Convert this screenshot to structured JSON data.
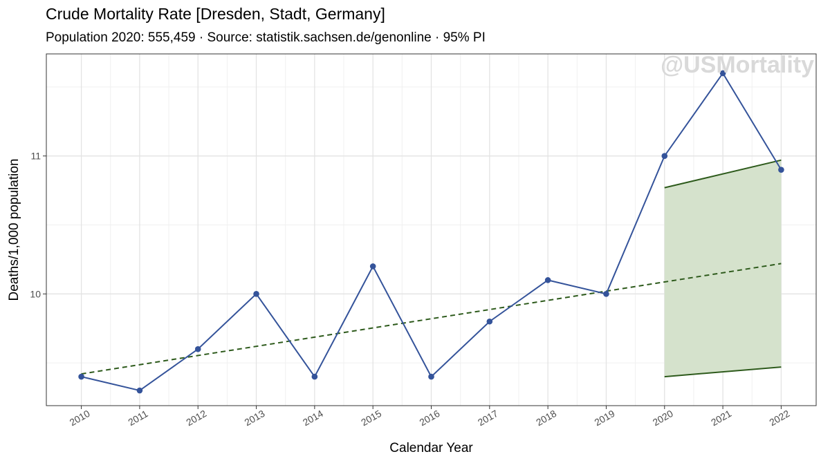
{
  "chart_data": {
    "type": "line",
    "title": "Crude Mortality Rate [Dresden, Stadt, Germany]",
    "subtitle": "Population 2020: 555,459 · Source: statistik.sachsen.de/genonline · 95% PI",
    "xlabel": "Calendar Year",
    "ylabel": "Deaths/1,000 population",
    "watermark": "@USMortality",
    "x": [
      2010,
      2011,
      2012,
      2013,
      2014,
      2015,
      2016,
      2017,
      2018,
      2019,
      2020,
      2021,
      2022
    ],
    "x_tick_labels": [
      "2010",
      "2011",
      "2012",
      "2013",
      "2014",
      "2015",
      "2016",
      "2017",
      "2018",
      "2019",
      "2020",
      "2021",
      "2022"
    ],
    "y_ticks": [
      10,
      11
    ],
    "y_tick_labels": [
      "10",
      "11"
    ],
    "ylim": [
      9.19,
      11.74
    ],
    "grid": true,
    "series": [
      {
        "name": "",
        "kind": "line-points",
        "color": "#34539a",
        "x": [
          2010,
          2011,
          2012,
          2013,
          2014,
          2015,
          2016,
          2017,
          2018,
          2019,
          2020,
          2021,
          2022
        ],
        "values": [
          9.4,
          9.3,
          9.6,
          10.0,
          9.4,
          10.2,
          9.4,
          9.8,
          10.1,
          10.0,
          11.0,
          11.6,
          10.9
        ]
      },
      {
        "name": "",
        "kind": "trend-dashed",
        "color": "#2d5a1b",
        "x": [
          2010,
          2022
        ],
        "values": [
          9.42,
          10.22
        ]
      }
    ],
    "prediction_interval": {
      "x": [
        2020,
        2022
      ],
      "lower": [
        9.4,
        9.47
      ],
      "upper": [
        10.77,
        10.97
      ],
      "fill": "#d5e2cc",
      "line": "#2d5a1b"
    }
  }
}
